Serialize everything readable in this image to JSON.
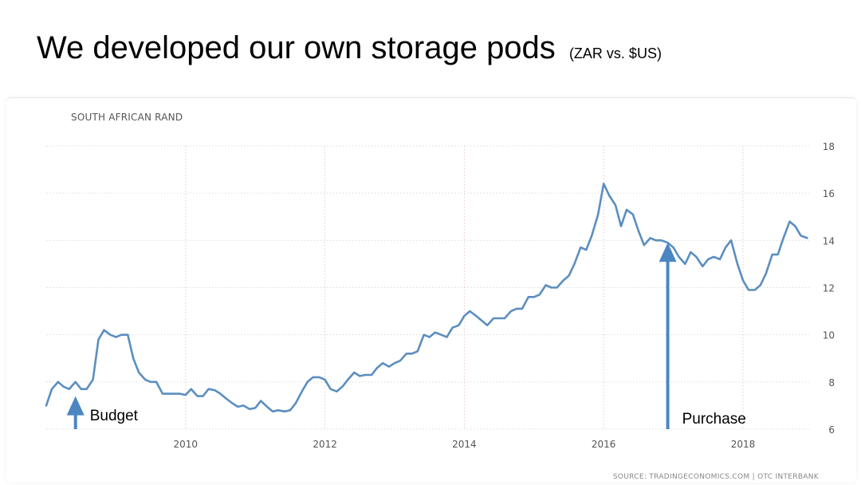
{
  "slide": {
    "title": "We developed our own storage pods",
    "subtitle": "(ZAR vs. $US)"
  },
  "chart_data": {
    "type": "line",
    "title": "SOUTH AFRICAN RAND",
    "source": "SOURCE: TRADINGECONOMICS.COM | OTC INTERBANK",
    "xlabel": "",
    "ylabel": "",
    "xlim": [
      2008.0,
      2018.95
    ],
    "ylim": [
      6,
      18
    ],
    "x_ticks": [
      2010,
      2012,
      2014,
      2016,
      2018
    ],
    "y_ticks": [
      6,
      8,
      10,
      12,
      14,
      16,
      18
    ],
    "grid": true,
    "line_color": "#5b8ebf",
    "series": [
      {
        "x": [
          2008.0,
          2008.08,
          2008.17,
          2008.25,
          2008.33,
          2008.42,
          2008.5,
          2008.58,
          2008.67,
          2008.75,
          2008.83,
          2008.92,
          2009.0,
          2009.08,
          2009.17,
          2009.25,
          2009.33,
          2009.42,
          2009.5,
          2009.58,
          2009.67,
          2009.75,
          2009.83,
          2009.92,
          2010.0,
          2010.08,
          2010.17,
          2010.25,
          2010.33,
          2010.42,
          2010.5,
          2010.58,
          2010.67,
          2010.75,
          2010.83,
          2010.92,
          2011.0,
          2011.08,
          2011.17,
          2011.25,
          2011.33,
          2011.42,
          2011.5,
          2011.58,
          2011.67,
          2011.75,
          2011.83,
          2011.92,
          2012.0,
          2012.08,
          2012.17,
          2012.25,
          2012.33,
          2012.42,
          2012.5,
          2012.58,
          2012.67,
          2012.75,
          2012.83,
          2012.92,
          2013.0,
          2013.08,
          2013.17,
          2013.25,
          2013.33,
          2013.42,
          2013.5,
          2013.58,
          2013.67,
          2013.75,
          2013.83,
          2013.92,
          2014.0,
          2014.08,
          2014.17,
          2014.25,
          2014.33,
          2014.42,
          2014.5,
          2014.58,
          2014.67,
          2014.75,
          2014.83,
          2014.92,
          2015.0,
          2015.08,
          2015.17,
          2015.25,
          2015.33,
          2015.42,
          2015.5,
          2015.58,
          2015.67,
          2015.75,
          2015.83,
          2015.92,
          2016.0,
          2016.08,
          2016.17,
          2016.25,
          2016.33,
          2016.42,
          2016.5,
          2016.58,
          2016.67,
          2016.75,
          2016.83,
          2016.92,
          2017.0,
          2017.08,
          2017.17,
          2017.25,
          2017.33,
          2017.42,
          2017.5,
          2017.58,
          2017.67,
          2017.75,
          2017.83,
          2017.92,
          2018.0,
          2018.08,
          2018.17,
          2018.25,
          2018.33,
          2018.42,
          2018.5,
          2018.58,
          2018.67,
          2018.75,
          2018.83,
          2018.92
        ],
        "y": [
          7.0,
          7.7,
          8.0,
          7.8,
          7.7,
          8.0,
          7.7,
          7.7,
          8.1,
          9.8,
          10.2,
          10.0,
          9.9,
          10.0,
          10.0,
          9.0,
          8.4,
          8.1,
          8.0,
          8.0,
          7.5,
          7.5,
          7.5,
          7.5,
          7.45,
          7.7,
          7.4,
          7.4,
          7.7,
          7.65,
          7.5,
          7.3,
          7.1,
          6.95,
          7.0,
          6.85,
          6.9,
          7.2,
          6.95,
          6.75,
          6.8,
          6.75,
          6.8,
          7.1,
          7.6,
          8.0,
          8.2,
          8.2,
          8.1,
          7.7,
          7.6,
          7.8,
          8.1,
          8.4,
          8.25,
          8.3,
          8.3,
          8.6,
          8.8,
          8.65,
          8.8,
          8.9,
          9.2,
          9.2,
          9.3,
          10.0,
          9.9,
          10.1,
          10.0,
          9.9,
          10.3,
          10.4,
          10.8,
          11.0,
          10.8,
          10.6,
          10.4,
          10.7,
          10.7,
          10.7,
          11.0,
          11.1,
          11.1,
          11.6,
          11.6,
          11.7,
          12.1,
          12.0,
          12.0,
          12.3,
          12.5,
          13.0,
          13.7,
          13.6,
          14.2,
          15.1,
          16.4,
          15.9,
          15.5,
          14.6,
          15.3,
          15.1,
          14.4,
          13.8,
          14.1,
          14.0,
          14.0,
          13.9,
          13.7,
          13.3,
          13.0,
          13.5,
          13.3,
          12.9,
          13.2,
          13.3,
          13.2,
          13.7,
          14.0,
          13.0,
          12.3,
          11.9,
          11.9,
          12.1,
          12.6,
          13.4,
          13.4,
          14.1,
          14.8,
          14.6,
          14.2,
          14.1
        ]
      }
    ],
    "annotations": [
      {
        "label": "Budget",
        "x": 2008.42,
        "y": 7.4
      },
      {
        "label": "Purchase",
        "x": 2016.92,
        "y": 13.9
      }
    ]
  }
}
